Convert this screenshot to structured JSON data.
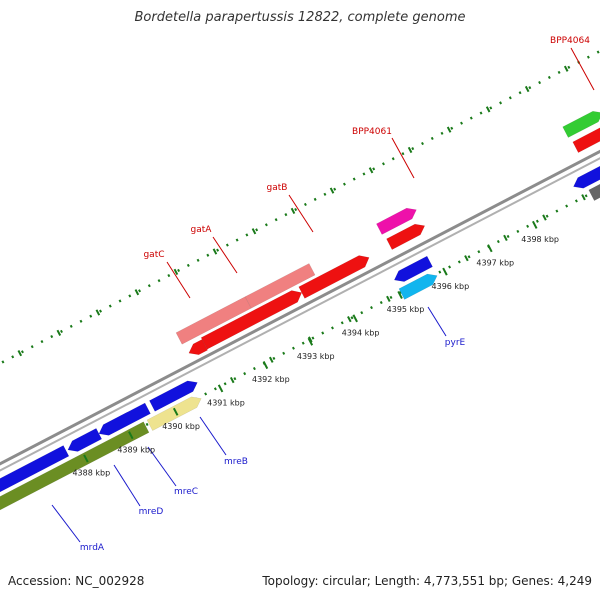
{
  "title": "Bordetella parapertussis 12822, complete genome",
  "footer": {
    "accession": "Accession: NC_002928",
    "summary": "Topology: circular; Length: 4,773,551 bp; Genes: 4,249"
  },
  "colors": {
    "backbone": "#8c8c8c",
    "dots": "#1a7a1a",
    "red": "#ee1111",
    "salmon": "#f08080",
    "blue": "#1111dd",
    "cyan": "#11b5ee",
    "magenta": "#ee11aa",
    "green": "#33cc33",
    "olive": "#6b8e23",
    "khaki": "#eee38f",
    "gray": "#666666",
    "label_red": "#cc0000",
    "label_blue": "#1a1acc"
  },
  "scale": {
    "ticks": [
      {
        "label": "4388 kbp",
        "kbp": 4388
      },
      {
        "label": "4389 kbp",
        "kbp": 4389
      },
      {
        "label": "4390 kbp",
        "kbp": 4390
      },
      {
        "label": "4391 kbp",
        "kbp": 4391
      },
      {
        "label": "4392 kbp",
        "kbp": 4392
      },
      {
        "label": "4393 kbp",
        "kbp": 4393
      },
      {
        "label": "4394 kbp",
        "kbp": 4394
      },
      {
        "label": "4395 kbp",
        "kbp": 4395
      },
      {
        "label": "4396 kbp",
        "kbp": 4396
      },
      {
        "label": "4397 kbp",
        "kbp": 4397
      },
      {
        "label": "4398 kbp",
        "kbp": 4398
      }
    ]
  },
  "labels": [
    {
      "text": "gatC",
      "color": "label_red"
    },
    {
      "text": "gatA",
      "color": "label_red"
    },
    {
      "text": "gatB",
      "color": "label_red"
    },
    {
      "text": "BPP4061",
      "color": "label_red"
    },
    {
      "text": "BPP4064",
      "color": "label_red"
    },
    {
      "text": "pyrE",
      "color": "label_blue"
    },
    {
      "text": "mreB",
      "color": "label_blue"
    },
    {
      "text": "mreC",
      "color": "label_blue"
    },
    {
      "text": "mreD",
      "color": "label_blue"
    },
    {
      "text": "mrdA",
      "color": "label_blue"
    }
  ]
}
